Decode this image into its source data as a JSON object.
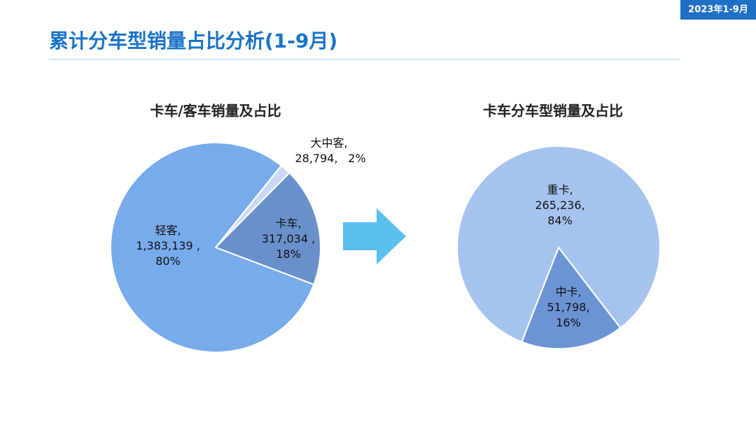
{
  "badge": "2023年1-9月",
  "title": "累计分车型销量占比分析(1-9月)",
  "chart_data": [
    {
      "type": "pie",
      "title": "卡车/客车销量及占比",
      "categories": [
        "大中客,",
        "卡车,",
        "轻客,"
      ],
      "values": [
        28794,
        317034,
        1383139
      ],
      "value_labels": [
        "28,794,",
        "317,034 ,",
        "1,383,139 ,"
      ],
      "shares": [
        2,
        18,
        80
      ],
      "share_labels": [
        "2%",
        "18%",
        "80%"
      ],
      "colors": [
        "#c9d9f3",
        "#6a90cb",
        "#78abec"
      ]
    },
    {
      "type": "pie",
      "title": "卡车分车型销量及占比",
      "categories": [
        "中卡,",
        "重卡,"
      ],
      "values": [
        51798,
        265236
      ],
      "value_labels": [
        "51,798,",
        "265,236,"
      ],
      "shares": [
        16,
        84
      ],
      "share_labels": [
        "16%",
        "84%"
      ],
      "colors": [
        "#6b94d4",
        "#a6c3f0"
      ]
    }
  ]
}
